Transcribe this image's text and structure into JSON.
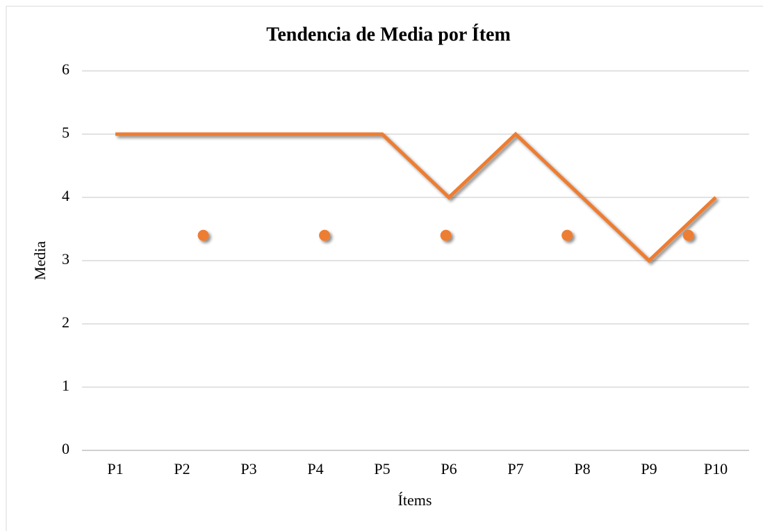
{
  "chart_data": {
    "type": "line",
    "title": "Tendencia de Media por Ítem",
    "xlabel": "Ítems",
    "ylabel": "Media",
    "categories": [
      "P1",
      "P2",
      "P3",
      "P4",
      "P5",
      "P6",
      "P7",
      "P8",
      "P9",
      "P10"
    ],
    "series": [
      {
        "type": "line",
        "color": "#ed7d31",
        "values": [
          5,
          5,
          5,
          5,
          5,
          4,
          5,
          4,
          3,
          4
        ]
      },
      {
        "type": "scatter",
        "color": "#ed7d31",
        "axis": "x2",
        "x": [
          1,
          2,
          3,
          4,
          5
        ],
        "values": [
          3.4,
          3.4,
          3.4,
          3.4,
          3.4
        ]
      }
    ],
    "ylim": [
      0,
      6
    ],
    "yticks": [
      0,
      1,
      2,
      3,
      4,
      5,
      6
    ],
    "x2lim": [
      0,
      5.5
    ],
    "grid": true
  }
}
